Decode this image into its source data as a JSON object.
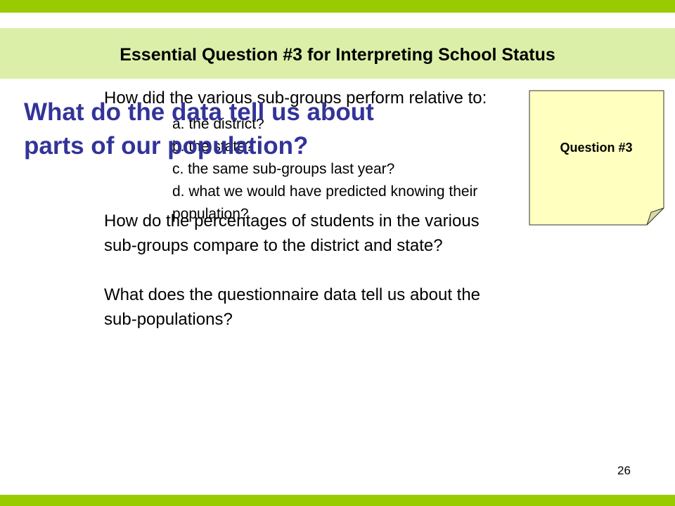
{
  "slide": {
    "title": "Essential Question #3 for Interpreting School Status",
    "overlay_heading": {
      "line1": "What do the data tell us about",
      "line2": "parts of our population?"
    },
    "questions": {
      "q1": "How did the various sub-groups perform relative to:",
      "q1_items": [
        "a. the district?",
        "b. the state?",
        "c. the same sub-groups last year?",
        "d. what we would have predicted knowing their",
        "population?"
      ],
      "q2_line1": "How do the percentages of students in the various",
      "q2_line2": "sub-groups compare to the district and state?",
      "q3_line1": "What does the questionnaire data tell us about the",
      "q3_line2": "sub-populations?"
    },
    "note_label": "Question #3",
    "page_number": "26"
  },
  "colors": {
    "accent_green": "#99cc00",
    "header_band": "#dcefa9",
    "heading_blue": "#333399",
    "note_yellow": "#ffffc0"
  }
}
